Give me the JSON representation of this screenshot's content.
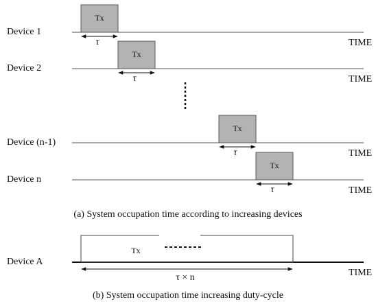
{
  "rows": [
    {
      "label": "Device 1",
      "block": "Tx",
      "duration": "τ",
      "axis": "TIME"
    },
    {
      "label": "Device 2",
      "block": "Tx",
      "duration": "τ",
      "axis": "TIME"
    },
    {
      "label": "Device (n-1)",
      "block": "Tx",
      "duration": "τ",
      "axis": "TIME"
    },
    {
      "label": "Device n",
      "block": "Tx",
      "duration": "τ",
      "axis": "TIME"
    }
  ],
  "caption_a": "(a) System occupation time according to increasing devices",
  "device_a": {
    "label": "Device A",
    "block": "Tx",
    "duration": "τ × n",
    "axis": "TIME"
  },
  "caption_b": "(b) System occupation time increasing duty-cycle"
}
